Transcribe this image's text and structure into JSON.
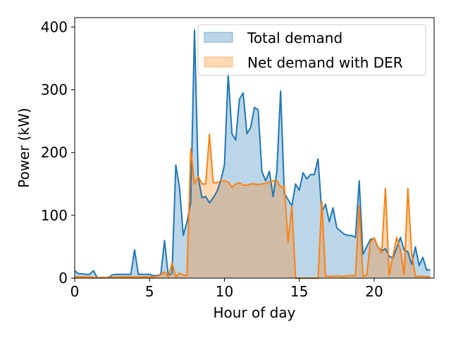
{
  "chart_data": {
    "type": "area",
    "title": "",
    "xlabel": "Hour of day",
    "ylabel": "Power (kW)",
    "xlim": [
      0,
      24
    ],
    "ylim": [
      0,
      415
    ],
    "xticks": [
      0,
      5,
      10,
      15,
      20
    ],
    "yticks": [
      0,
      100,
      200,
      300,
      400
    ],
    "grid": false,
    "legend_position": "top-right",
    "series": [
      {
        "name": "Total demand",
        "line_color": "#1f77b4",
        "fill_color": "#1f77b4",
        "fill_opacity": 0.3,
        "x": [
          0.0,
          0.25,
          0.5,
          0.75,
          1.0,
          1.25,
          1.5,
          1.75,
          2.0,
          2.25,
          2.5,
          2.75,
          3.0,
          3.25,
          3.5,
          3.75,
          4.0,
          4.25,
          4.5,
          4.75,
          5.0,
          5.25,
          5.5,
          5.75,
          6.0,
          6.25,
          6.5,
          6.75,
          7.0,
          7.25,
          7.5,
          7.75,
          8.0,
          8.25,
          8.5,
          8.75,
          9.0,
          9.25,
          9.5,
          9.75,
          10.0,
          10.25,
          10.5,
          10.75,
          11.0,
          11.25,
          11.5,
          11.75,
          12.0,
          12.25,
          12.5,
          12.75,
          13.0,
          13.25,
          13.5,
          13.75,
          14.0,
          14.25,
          14.5,
          14.75,
          15.0,
          15.25,
          15.5,
          15.75,
          16.0,
          16.25,
          16.5,
          16.75,
          17.0,
          17.25,
          17.5,
          17.75,
          18.0,
          18.25,
          18.5,
          18.75,
          19.0,
          19.25,
          19.5,
          19.75,
          20.0,
          20.25,
          20.5,
          20.75,
          21.0,
          21.25,
          21.5,
          21.75,
          22.0,
          22.25,
          22.5,
          22.75,
          23.0,
          23.25,
          23.5,
          23.75
        ],
        "values": [
          12,
          7,
          7,
          6,
          6,
          12,
          1,
          1,
          1,
          1,
          5,
          6,
          6,
          6,
          6,
          6,
          45,
          6,
          6,
          6,
          6,
          4,
          4,
          6,
          60,
          4,
          8,
          180,
          145,
          68,
          90,
          120,
          395,
          160,
          128,
          130,
          120,
          128,
          138,
          155,
          180,
          325,
          230,
          220,
          285,
          295,
          230,
          240,
          272,
          268,
          170,
          155,
          170,
          130,
          170,
          298,
          135,
          125,
          115,
          150,
          140,
          168,
          158,
          165,
          165,
          190,
          105,
          118,
          90,
          112,
          80,
          75,
          70,
          68,
          68,
          65,
          155,
          38,
          50,
          62,
          63,
          50,
          43,
          47,
          35,
          32,
          48,
          65,
          45,
          42,
          22,
          50,
          20,
          33,
          13,
          13
        ]
      },
      {
        "name": "Net demand with DER",
        "line_color": "#ff7f0e",
        "fill_color": "#ff7f0e",
        "fill_opacity": 0.3,
        "x": [
          0.0,
          0.25,
          0.5,
          0.75,
          1.0,
          1.25,
          1.5,
          1.75,
          2.0,
          2.25,
          2.5,
          2.75,
          3.0,
          3.25,
          3.5,
          3.75,
          4.0,
          4.25,
          4.5,
          4.75,
          5.0,
          5.25,
          5.5,
          5.75,
          6.0,
          6.25,
          6.5,
          6.75,
          7.0,
          7.25,
          7.5,
          7.75,
          8.0,
          8.25,
          8.5,
          8.75,
          9.0,
          9.25,
          9.5,
          9.75,
          10.0,
          10.25,
          10.5,
          10.75,
          11.0,
          11.25,
          11.5,
          11.75,
          12.0,
          12.25,
          12.5,
          12.75,
          13.0,
          13.25,
          13.5,
          13.75,
          14.0,
          14.25,
          14.5,
          14.75,
          15.0,
          15.25,
          15.5,
          15.75,
          16.0,
          16.25,
          16.5,
          16.75,
          17.0,
          17.25,
          17.5,
          17.75,
          18.0,
          18.25,
          18.5,
          18.75,
          19.0,
          19.25,
          19.5,
          19.75,
          20.0,
          20.25,
          20.5,
          20.75,
          21.0,
          21.25,
          21.5,
          21.75,
          22.0,
          22.25,
          22.5,
          22.75,
          23.0,
          23.25,
          23.5,
          23.75
        ],
        "values": [
          2,
          2,
          2,
          2,
          2,
          1,
          1,
          1,
          1,
          1,
          1,
          2,
          2,
          2,
          2,
          2,
          2,
          2,
          2,
          2,
          2,
          2,
          3,
          5,
          10,
          2,
          24,
          2,
          8,
          5,
          4,
          206,
          150,
          162,
          150,
          150,
          229,
          152,
          152,
          155,
          155,
          153,
          145,
          150,
          152,
          148,
          148,
          150,
          150,
          149,
          150,
          151,
          153,
          155,
          155,
          145,
          147,
          57,
          115,
          0,
          0,
          0,
          0,
          0,
          0,
          0,
          123,
          3,
          3,
          3,
          4,
          3,
          3,
          4,
          4,
          4,
          115,
          3,
          5,
          58,
          64,
          50,
          40,
          143,
          5,
          35,
          65,
          45,
          5,
          143,
          40,
          3,
          3,
          3,
          2,
          2
        ]
      }
    ]
  }
}
